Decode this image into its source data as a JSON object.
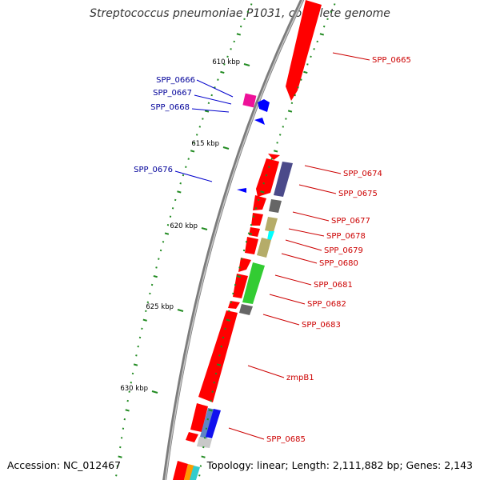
{
  "title": "Streptococcus pneumoniae P1031, complete genome",
  "accession": "Accession: NC_012467",
  "topology_info": "Topology: linear; Length: 2,111,882 bp; Genes: 2,143",
  "colors": {
    "forward_gene": "#ff0000",
    "reverse_gene": "#0000ff",
    "reverse_label": "#000099",
    "forward_label": "#cc0000",
    "backbone": "#8a8a8a",
    "tick": "#228b22"
  },
  "scale_labels": [
    {
      "kbp": 610,
      "label": "610 kbp"
    },
    {
      "kbp": 615,
      "label": "615 kbp"
    },
    {
      "kbp": 620,
      "label": "620 kbp"
    },
    {
      "kbp": 625,
      "label": "625 kbp"
    },
    {
      "kbp": 630,
      "label": "630 kbp"
    }
  ],
  "gene_labels_forward": [
    "SPP_0665",
    "SPP_0674",
    "SPP_0675",
    "SPP_0677",
    "SPP_0678",
    "SPP_0679",
    "SPP_0680",
    "SPP_0681",
    "SPP_0682",
    "SPP_0683",
    "zmpB1",
    "SPP_0685"
  ],
  "gene_labels_reverse": [
    "SPP_0666",
    "SPP_0667",
    "SPP_0668",
    "SPP_0676"
  ]
}
